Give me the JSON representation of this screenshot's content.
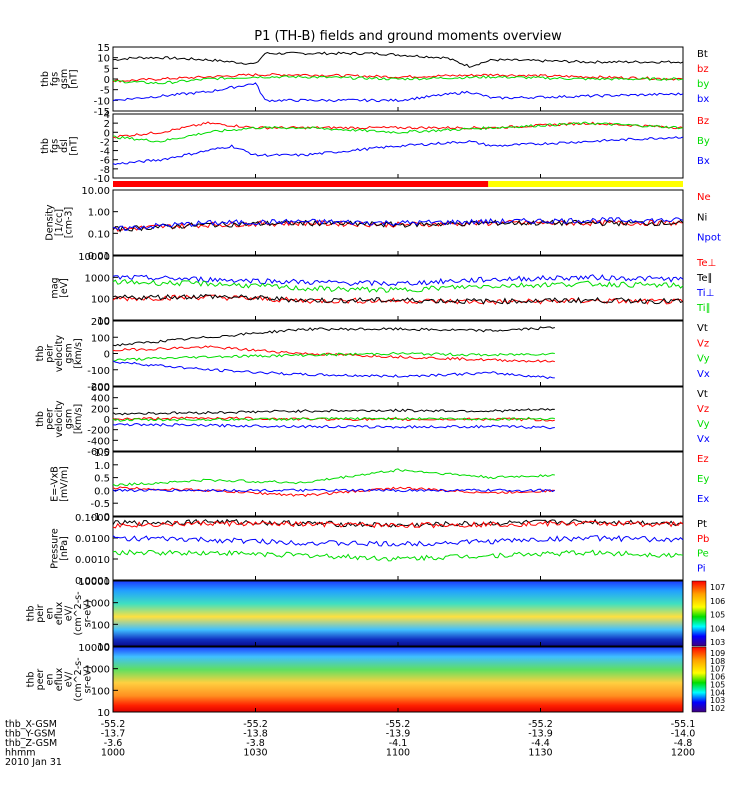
{
  "title": "P1 (TH-B) fields and ground moments overview",
  "colors": {
    "black": "#000000",
    "red": "#ff0000",
    "green": "#00dd00",
    "blue": "#0000ff",
    "yellow": "#ffff00"
  },
  "chart_data": [
    {
      "type": "line",
      "ylabel": "thb fgs gsm [nT]",
      "ylabel_lines": [
        "thb",
        "fgs",
        "gsm",
        "[nT]"
      ],
      "ylim": [
        -15,
        15
      ],
      "yticks": [
        "15",
        "10",
        "5",
        "0",
        "-5",
        "-10",
        "-15"
      ],
      "series": [
        {
          "name": "Bt",
          "color": "black",
          "x": [
            0,
            5,
            10,
            20,
            30,
            32,
            40,
            55,
            70,
            75,
            80,
            100,
            120
          ],
          "values": [
            9,
            10,
            10,
            9,
            7,
            12,
            12,
            12,
            10,
            6,
            9,
            8,
            8
          ]
        },
        {
          "name": "bz",
          "color": "red",
          "x": [
            0,
            10,
            20,
            30,
            40,
            60,
            80,
            100,
            120
          ],
          "values": [
            -1,
            0,
            1,
            2,
            2,
            1,
            2,
            1,
            0
          ]
        },
        {
          "name": "by",
          "color": "green",
          "x": [
            0,
            10,
            20,
            30,
            40,
            60,
            80,
            100,
            120
          ],
          "values": [
            -1,
            -2,
            0,
            1,
            1,
            0,
            1,
            0,
            0
          ]
        },
        {
          "name": "bx",
          "color": "blue",
          "x": [
            0,
            5,
            10,
            20,
            30,
            32,
            40,
            60,
            75,
            80,
            100,
            120
          ],
          "values": [
            -10,
            -9,
            -8,
            -6,
            -2,
            -10,
            -10,
            -10,
            -6,
            -9,
            -8,
            -7
          ]
        }
      ]
    },
    {
      "type": "line",
      "ylabel": "thb fgs dsl [nT]",
      "ylabel_lines": [
        "thb",
        "fgs",
        "dsl",
        "[nT]"
      ],
      "ylim": [
        -10,
        4
      ],
      "yticks": [
        "4",
        "2",
        "0",
        "-2",
        "-4",
        "-6",
        "-8",
        "-10"
      ],
      "series": [
        {
          "name": "Bz",
          "color": "red",
          "x": [
            0,
            10,
            20,
            30,
            40,
            60,
            80,
            100,
            120
          ],
          "values": [
            -1,
            0,
            2,
            1,
            1,
            1,
            1,
            2,
            1
          ]
        },
        {
          "name": "By",
          "color": "green",
          "x": [
            0,
            10,
            20,
            30,
            40,
            60,
            80,
            100,
            120
          ],
          "values": [
            -1,
            -2,
            0,
            1,
            1,
            0,
            1,
            2,
            1
          ]
        },
        {
          "name": "Bx",
          "color": "blue",
          "x": [
            0,
            10,
            20,
            25,
            30,
            40,
            60,
            75,
            80,
            100,
            120
          ],
          "values": [
            -7,
            -6,
            -4,
            -3,
            -5,
            -5,
            -3,
            -2,
            -3,
            -2,
            -1
          ]
        }
      ]
    },
    {
      "type": "line",
      "ylabel": "Density [1/cc] [cm-3]",
      "ylabel_lines": [
        "Density",
        "[1/cc]",
        "[cm-3]"
      ],
      "ylim": [
        0.01,
        10
      ],
      "scale": "log",
      "yticks": [
        "10.00",
        "1.00",
        "0.10",
        "0.01"
      ],
      "series": [
        {
          "name": "Ne",
          "color": "red",
          "x": [
            0,
            20,
            40,
            60,
            80,
            100,
            120
          ],
          "values": [
            0.15,
            0.25,
            0.3,
            0.25,
            0.3,
            0.3,
            0.3
          ]
        },
        {
          "name": "Ni",
          "color": "black",
          "x": [
            0,
            20,
            40,
            60,
            80,
            100,
            120
          ],
          "values": [
            0.15,
            0.25,
            0.3,
            0.25,
            0.3,
            0.3,
            0.3
          ]
        },
        {
          "name": "Npot",
          "color": "blue",
          "x": [
            0,
            20,
            40,
            60,
            80,
            100,
            120
          ],
          "values": [
            0.15,
            0.3,
            0.35,
            0.3,
            0.35,
            0.4,
            0.4
          ]
        }
      ]
    },
    {
      "type": "line",
      "ylabel": "mag [eV]",
      "ylabel_lines": [
        "mag",
        "[eV]"
      ],
      "ylim": [
        10,
        10000
      ],
      "scale": "log",
      "yticks": [
        "10000",
        "1000",
        "100",
        "10"
      ],
      "series": [
        {
          "name": "Te⊥",
          "color": "red",
          "x": [
            0,
            20,
            40,
            60,
            80,
            100,
            120
          ],
          "values": [
            100,
            120,
            80,
            80,
            70,
            80,
            70
          ]
        },
        {
          "name": "Te∥",
          "color": "black",
          "x": [
            0,
            20,
            40,
            60,
            80,
            100,
            120
          ],
          "values": [
            110,
            130,
            85,
            85,
            75,
            85,
            75
          ]
        },
        {
          "name": "Ti⊥",
          "color": "blue",
          "x": [
            0,
            20,
            40,
            60,
            80,
            100,
            120
          ],
          "values": [
            1000,
            800,
            600,
            500,
            800,
            1000,
            800
          ]
        },
        {
          "name": "Ti∥",
          "color": "green",
          "x": [
            0,
            20,
            40,
            60,
            80,
            100,
            120
          ],
          "values": [
            600,
            500,
            300,
            250,
            400,
            500,
            400
          ]
        }
      ]
    },
    {
      "type": "line",
      "ylabel": "thb peir velocity gsm [km/s]",
      "ylabel_lines": [
        "thb",
        "peir",
        "velocity",
        "gsm",
        "[km/s]"
      ],
      "ylim": [
        -200,
        200
      ],
      "yticks": [
        "200",
        "100",
        "0",
        "-100",
        "-200"
      ],
      "series": [
        {
          "name": "Vt",
          "color": "black",
          "x": [
            0,
            20,
            40,
            60,
            80,
            93
          ],
          "values": [
            50,
            100,
            150,
            150,
            140,
            160
          ]
        },
        {
          "name": "Vz",
          "color": "red",
          "x": [
            0,
            20,
            40,
            60,
            80,
            93
          ],
          "values": [
            20,
            40,
            0,
            -20,
            -40,
            -50
          ]
        },
        {
          "name": "Vy",
          "color": "green",
          "x": [
            0,
            20,
            40,
            60,
            80,
            93
          ],
          "values": [
            -40,
            -20,
            -10,
            0,
            -10,
            0
          ]
        },
        {
          "name": "Vx",
          "color": "blue",
          "x": [
            0,
            20,
            40,
            60,
            80,
            93
          ],
          "values": [
            -50,
            -100,
            -130,
            -140,
            -120,
            -150
          ]
        }
      ]
    },
    {
      "type": "line",
      "ylabel": "thb peer velocity gsm [km/s]",
      "ylabel_lines": [
        "thb",
        "peer",
        "velocity",
        "gsm",
        "[km/s]"
      ],
      "ylim": [
        -600,
        600
      ],
      "yticks": [
        "600",
        "400",
        "200",
        "0",
        "-200",
        "-400",
        "-600"
      ],
      "series": [
        {
          "name": "Vt",
          "color": "black",
          "x": [
            0,
            20,
            40,
            60,
            80,
            93
          ],
          "values": [
            100,
            120,
            150,
            160,
            150,
            180
          ]
        },
        {
          "name": "Vz",
          "color": "red",
          "x": [
            0,
            20,
            40,
            60,
            80,
            93
          ],
          "values": [
            0,
            20,
            0,
            -10,
            0,
            -20
          ]
        },
        {
          "name": "Vy",
          "color": "green",
          "x": [
            0,
            20,
            40,
            60,
            80,
            93
          ],
          "values": [
            -20,
            -10,
            0,
            10,
            0,
            10
          ]
        },
        {
          "name": "Vx",
          "color": "blue",
          "x": [
            0,
            20,
            40,
            60,
            80,
            93
          ],
          "values": [
            -100,
            -120,
            -140,
            -150,
            -140,
            -160
          ]
        }
      ]
    },
    {
      "type": "line",
      "ylabel": "E=-VxB [mV/m]",
      "ylabel_lines": [
        "E=-VxB",
        "[mV/m]"
      ],
      "ylim": [
        -1,
        1.5
      ],
      "yticks": [
        "1.5",
        "1.0",
        "0.5",
        "0.0",
        "-0.5",
        "-1.0"
      ],
      "series": [
        {
          "name": "Ez",
          "color": "red",
          "x": [
            0,
            20,
            40,
            60,
            80,
            93
          ],
          "values": [
            0.1,
            0.0,
            -0.2,
            0.1,
            -0.1,
            0.0
          ]
        },
        {
          "name": "Ey",
          "color": "green",
          "x": [
            0,
            20,
            40,
            60,
            80,
            93
          ],
          "values": [
            0.2,
            0.4,
            0.3,
            0.8,
            0.5,
            0.6
          ]
        },
        {
          "name": "Ex",
          "color": "blue",
          "x": [
            0,
            20,
            40,
            60,
            80,
            93
          ],
          "values": [
            0.0,
            0.0,
            0.0,
            0.0,
            0.0,
            0.0
          ]
        }
      ]
    },
    {
      "type": "line",
      "ylabel": "Pressure [nPa]",
      "ylabel_lines": [
        "Pressure",
        "[nPa]"
      ],
      "ylim": [
        0.0001,
        0.1
      ],
      "scale": "log",
      "yticks": [
        "0.1000",
        "0.0100",
        "0.0010",
        "0.0001"
      ],
      "series": [
        {
          "name": "Pt",
          "color": "black",
          "x": [
            0,
            20,
            40,
            60,
            80,
            100,
            120
          ],
          "values": [
            0.05,
            0.06,
            0.05,
            0.04,
            0.05,
            0.06,
            0.05
          ]
        },
        {
          "name": "Pb",
          "color": "red",
          "x": [
            0,
            20,
            40,
            60,
            80,
            100,
            120
          ],
          "values": [
            0.04,
            0.05,
            0.045,
            0.04,
            0.045,
            0.05,
            0.045
          ]
        },
        {
          "name": "Pe",
          "color": "green",
          "x": [
            0,
            20,
            40,
            60,
            80,
            100,
            120
          ],
          "values": [
            0.002,
            0.002,
            0.0015,
            0.001,
            0.0015,
            0.002,
            0.0015
          ]
        },
        {
          "name": "Pi",
          "color": "blue",
          "x": [
            0,
            20,
            40,
            60,
            80,
            100,
            120
          ],
          "values": [
            0.01,
            0.008,
            0.006,
            0.005,
            0.007,
            0.01,
            0.008
          ]
        }
      ]
    },
    {
      "type": "heatmap",
      "ylabel": "thb peir en eflux eV/(cm^2-s-sr-eV)",
      "ylabel_lines": [
        "thb",
        "peir",
        "en",
        "eflux",
        "eV/",
        "(cm^2-s-",
        "sr-eV)"
      ],
      "ylim": [
        5,
        20000
      ],
      "scale": "log",
      "yticks": [
        "10000",
        "1000",
        "100",
        "10"
      ],
      "colorbar_ticks": [
        "10^7",
        "10^6",
        "10^5",
        "10^4",
        "10^3"
      ],
      "colorbar_range": [
        1000,
        10000000
      ]
    },
    {
      "type": "heatmap",
      "ylabel": "thb peer en eflux eV/(cm^2-s-sr-eV)",
      "ylabel_lines": [
        "thb",
        "peer",
        "en",
        "eflux",
        "eV/",
        "(cm^2-s-",
        "sr-eV)"
      ],
      "ylim": [
        5,
        20000
      ],
      "scale": "log",
      "yticks": [
        "10000",
        "1000",
        "100",
        "10"
      ],
      "colorbar_ticks": [
        "10^9",
        "10^8",
        "10^7",
        "10^6",
        "10^5",
        "10^4",
        "10^3",
        "10^2"
      ],
      "colorbar_range": [
        100,
        1000000000
      ]
    }
  ],
  "mode_bar": {
    "segments": [
      {
        "from": 0,
        "to": 79,
        "color": "red"
      },
      {
        "from": 79,
        "to": 120,
        "color": "yellow"
      }
    ]
  },
  "x_axis": {
    "range_minutes": [
      0,
      120
    ],
    "tick_positions_minutes": [
      0,
      30,
      60,
      90,
      120
    ],
    "rows": [
      {
        "label": "thb_X-GSM",
        "values": [
          "-55.2",
          "-55.2",
          "-55.2",
          "-55.2",
          "-55.1"
        ]
      },
      {
        "label": "thb_Y-GSM",
        "values": [
          "-13.7",
          "-13.8",
          "-13.9",
          "-13.9",
          "-14.0"
        ]
      },
      {
        "label": "thb_Z-GSM",
        "values": [
          "-3.6",
          "-3.8",
          "-4.1",
          "-4.4",
          "-4.8"
        ]
      },
      {
        "label": "hhmm",
        "values": [
          "1000",
          "1030",
          "1100",
          "1130",
          "1200"
        ]
      }
    ],
    "date": "2010 Jan 31"
  }
}
